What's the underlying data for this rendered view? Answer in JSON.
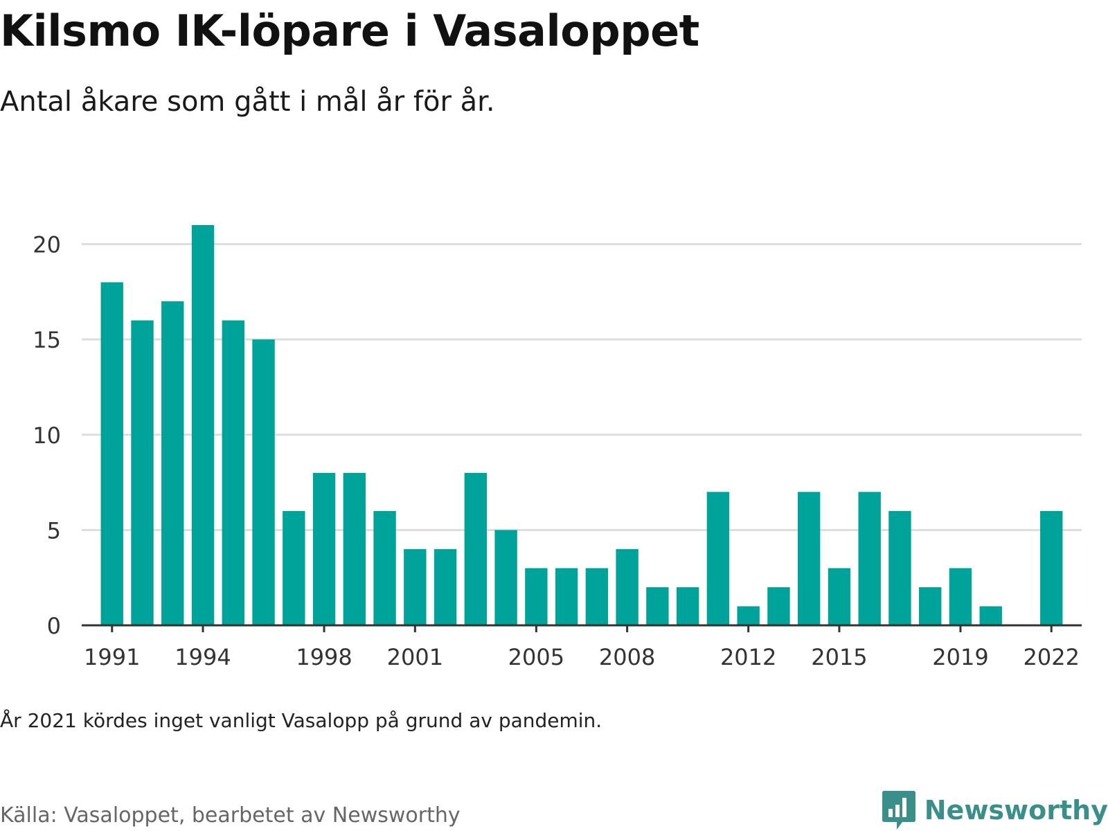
{
  "title": "Kilsmo IK-löpare i Vasaloppet",
  "subtitle": "Antal åkare som gått i mål år för år.",
  "note": "År 2021 kördes inget vanligt Vasalopp på grund av pandemin.",
  "source": "Källa: Vasaloppet, bearbetet av Newsworthy",
  "brand": {
    "name": "Newsworthy",
    "logo_icon": "newsworthy-bar-chart-icon"
  },
  "colors": {
    "bar": "#00a39a",
    "grid": "#dddddd",
    "axis": "#333333",
    "brand": "#3a8f8a"
  },
  "chart_data": {
    "type": "bar",
    "x": [
      1991,
      1992,
      1993,
      1994,
      1995,
      1996,
      1997,
      1998,
      1999,
      2000,
      2001,
      2002,
      2003,
      2004,
      2005,
      2006,
      2007,
      2008,
      2009,
      2010,
      2011,
      2012,
      2013,
      2014,
      2015,
      2016,
      2017,
      2018,
      2019,
      2020,
      2022
    ],
    "values": [
      18,
      16,
      17,
      21,
      16,
      15,
      6,
      8,
      8,
      6,
      4,
      4,
      8,
      5,
      3,
      3,
      3,
      4,
      2,
      2,
      7,
      1,
      2,
      7,
      3,
      7,
      6,
      2,
      3,
      1,
      6
    ],
    "x_ticks": [
      1991,
      1994,
      1998,
      2001,
      2005,
      2008,
      2012,
      2015,
      2019,
      2022
    ],
    "y_ticks": [
      0,
      5,
      10,
      15,
      20
    ],
    "ylim": [
      0,
      21
    ],
    "xlim": [
      1990,
      2023
    ],
    "grid": true,
    "legend": "none"
  }
}
